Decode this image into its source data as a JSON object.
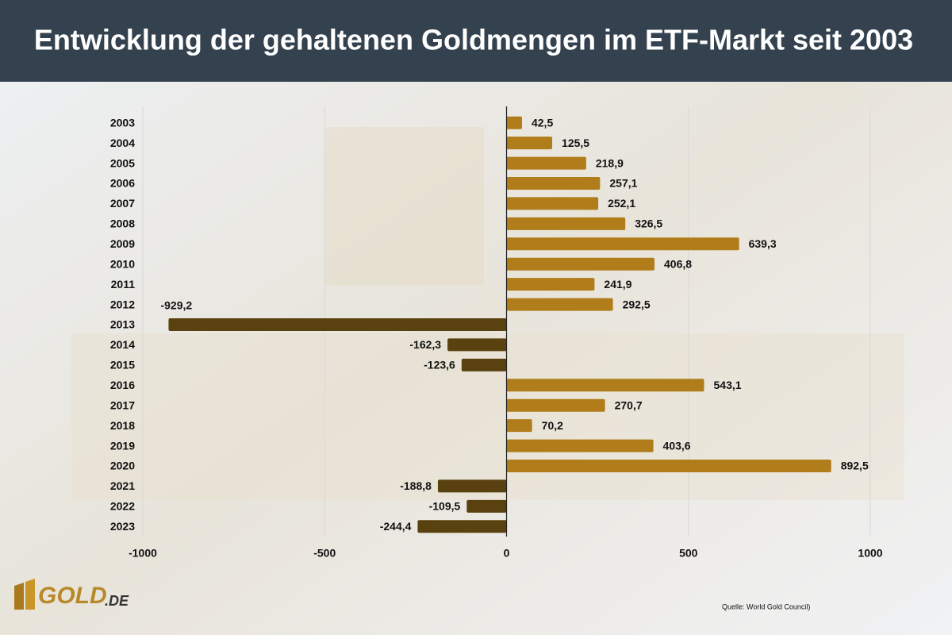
{
  "chart_data": {
    "type": "hbar",
    "title": "Entwicklung der gehaltenen Goldmengen im ETF-Markt seit 2003",
    "categories": [
      "2003",
      "2004",
      "2005",
      "2006",
      "2007",
      "2008",
      "2009",
      "2010",
      "2011",
      "2012",
      "2013",
      "2014",
      "2015",
      "2016",
      "2017",
      "2018",
      "2019",
      "2020",
      "2021",
      "2022",
      "2023"
    ],
    "values": [
      42.5,
      125.5,
      218.9,
      257.1,
      252.1,
      326.5,
      639.3,
      406.8,
      241.9,
      292.5,
      -929.2,
      -162.3,
      -123.6,
      543.1,
      270.7,
      70.2,
      403.6,
      892.5,
      -188.8,
      -109.5,
      -244.4
    ],
    "value_labels": [
      "42,5",
      "125,5",
      "218,9",
      "257,1",
      "252,1",
      "326,5",
      "639,3",
      "406,8",
      "241,9",
      "292,5",
      "-929,2",
      "-162,3",
      "-123,6",
      "543,1",
      "270,7",
      "70,2",
      "403,6",
      "892,5",
      "-188,8",
      "-109,5",
      "-244,4"
    ],
    "color_positive": "#b07d1a",
    "color_negative": "#5a4210",
    "xlim": [
      -1000,
      1000
    ],
    "xticks": [
      -1000,
      -500,
      0,
      500,
      1000
    ],
    "grid": true,
    "source": "Quelle: World Gold Council)",
    "logo": {
      "text": "GOLD",
      "suffix": ".DE"
    }
  }
}
